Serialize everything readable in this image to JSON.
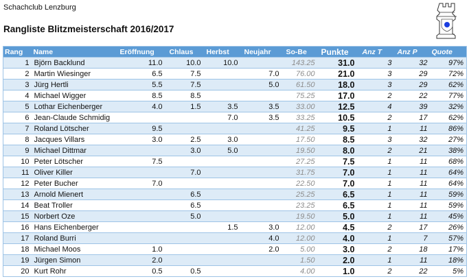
{
  "club": "Schachclub Lenzburg",
  "title": "Rangliste Blitzmeisterschaft 2016/2017",
  "colors": {
    "header": "#5b9bd5",
    "stripe": "#ddebf7",
    "logo_dot": "#1a3de0"
  },
  "columns": [
    "Rang",
    "Name",
    "Eröffnung",
    "Chlaus",
    "Herbst",
    "Neujahr",
    "So-Be",
    "Punkte",
    "Anz T",
    "Anz P",
    "Quote"
  ],
  "rows": [
    {
      "rang": "1",
      "name": "Björn Backlund",
      "eroeffnung": "11.0",
      "chlaus": "10.0",
      "herbst": "10.0",
      "neujahr": "",
      "sobe": "143.25",
      "punkte": "31.0",
      "anzt": "3",
      "anzp": "32",
      "quote": "97%"
    },
    {
      "rang": "2",
      "name": "Martin Wiesinger",
      "eroeffnung": "6.5",
      "chlaus": "7.5",
      "herbst": "",
      "neujahr": "7.0",
      "sobe": "76.00",
      "punkte": "21.0",
      "anzt": "3",
      "anzp": "29",
      "quote": "72%"
    },
    {
      "rang": "3",
      "name": "Jürg Hertli",
      "eroeffnung": "5.5",
      "chlaus": "7.5",
      "herbst": "",
      "neujahr": "5.0",
      "sobe": "61.50",
      "punkte": "18.0",
      "anzt": "3",
      "anzp": "29",
      "quote": "62%"
    },
    {
      "rang": "4",
      "name": "Michael Wigger",
      "eroeffnung": "8.5",
      "chlaus": "8.5",
      "herbst": "",
      "neujahr": "",
      "sobe": "75.25",
      "punkte": "17.0",
      "anzt": "2",
      "anzp": "22",
      "quote": "77%"
    },
    {
      "rang": "5",
      "name": "Lothar Eichenberger",
      "eroeffnung": "4.0",
      "chlaus": "1.5",
      "herbst": "3.5",
      "neujahr": "3.5",
      "sobe": "33.00",
      "punkte": "12.5",
      "anzt": "4",
      "anzp": "39",
      "quote": "32%"
    },
    {
      "rang": "6",
      "name": "Jean-Claude Schmidig",
      "eroeffnung": "",
      "chlaus": "",
      "herbst": "7.0",
      "neujahr": "3.5",
      "sobe": "33.25",
      "punkte": "10.5",
      "anzt": "2",
      "anzp": "17",
      "quote": "62%"
    },
    {
      "rang": "7",
      "name": "Roland Lötscher",
      "eroeffnung": "9.5",
      "chlaus": "",
      "herbst": "",
      "neujahr": "",
      "sobe": "41.25",
      "punkte": "9.5",
      "anzt": "1",
      "anzp": "11",
      "quote": "86%"
    },
    {
      "rang": "8",
      "name": "Jacques Villars",
      "eroeffnung": "3.0",
      "chlaus": "2.5",
      "herbst": "3.0",
      "neujahr": "",
      "sobe": "17.50",
      "punkte": "8.5",
      "anzt": "3",
      "anzp": "32",
      "quote": "27%"
    },
    {
      "rang": "9",
      "name": "Michael Dittmar",
      "eroeffnung": "",
      "chlaus": "3.0",
      "herbst": "5.0",
      "neujahr": "",
      "sobe": "19.50",
      "punkte": "8.0",
      "anzt": "2",
      "anzp": "21",
      "quote": "38%"
    },
    {
      "rang": "10",
      "name": "Peter Lötscher",
      "eroeffnung": "7.5",
      "chlaus": "",
      "herbst": "",
      "neujahr": "",
      "sobe": "27.25",
      "punkte": "7.5",
      "anzt": "1",
      "anzp": "11",
      "quote": "68%"
    },
    {
      "rang": "11",
      "name": "Oliver Killer",
      "eroeffnung": "",
      "chlaus": "7.0",
      "herbst": "",
      "neujahr": "",
      "sobe": "31.75",
      "punkte": "7.0",
      "anzt": "1",
      "anzp": "11",
      "quote": "64%"
    },
    {
      "rang": "12",
      "name": "Peter Bucher",
      "eroeffnung": "7.0",
      "chlaus": "",
      "herbst": "",
      "neujahr": "",
      "sobe": "22.50",
      "punkte": "7.0",
      "anzt": "1",
      "anzp": "11",
      "quote": "64%"
    },
    {
      "rang": "13",
      "name": "Arnold Mienert",
      "eroeffnung": "",
      "chlaus": "6.5",
      "herbst": "",
      "neujahr": "",
      "sobe": "25.25",
      "punkte": "6.5",
      "anzt": "1",
      "anzp": "11",
      "quote": "59%"
    },
    {
      "rang": "14",
      "name": "Beat Troller",
      "eroeffnung": "",
      "chlaus": "6.5",
      "herbst": "",
      "neujahr": "",
      "sobe": "23.25",
      "punkte": "6.5",
      "anzt": "1",
      "anzp": "11",
      "quote": "59%"
    },
    {
      "rang": "15",
      "name": "Norbert Oze",
      "eroeffnung": "",
      "chlaus": "5.0",
      "herbst": "",
      "neujahr": "",
      "sobe": "19.50",
      "punkte": "5.0",
      "anzt": "1",
      "anzp": "11",
      "quote": "45%"
    },
    {
      "rang": "16",
      "name": "Hans Eichenberger",
      "eroeffnung": "",
      "chlaus": "",
      "herbst": "1.5",
      "neujahr": "3.0",
      "sobe": "12.00",
      "punkte": "4.5",
      "anzt": "2",
      "anzp": "17",
      "quote": "26%"
    },
    {
      "rang": "17",
      "name": "Roland Burri",
      "eroeffnung": "",
      "chlaus": "",
      "herbst": "",
      "neujahr": "4.0",
      "sobe": "12.00",
      "punkte": "4.0",
      "anzt": "1",
      "anzp": "7",
      "quote": "57%"
    },
    {
      "rang": "18",
      "name": "Michael Moos",
      "eroeffnung": "1.0",
      "chlaus": "",
      "herbst": "",
      "neujahr": "2.0",
      "sobe": "5.00",
      "punkte": "3.0",
      "anzt": "2",
      "anzp": "18",
      "quote": "17%"
    },
    {
      "rang": "19",
      "name": "Jürgen Simon",
      "eroeffnung": "2.0",
      "chlaus": "",
      "herbst": "",
      "neujahr": "",
      "sobe": "1.50",
      "punkte": "2.0",
      "anzt": "1",
      "anzp": "11",
      "quote": "18%"
    },
    {
      "rang": "20",
      "name": "Kurt Rohr",
      "eroeffnung": "0.5",
      "chlaus": "0.5",
      "herbst": "",
      "neujahr": "",
      "sobe": "4.00",
      "punkte": "1.0",
      "anzt": "2",
      "anzp": "22",
      "quote": "5%"
    }
  ]
}
